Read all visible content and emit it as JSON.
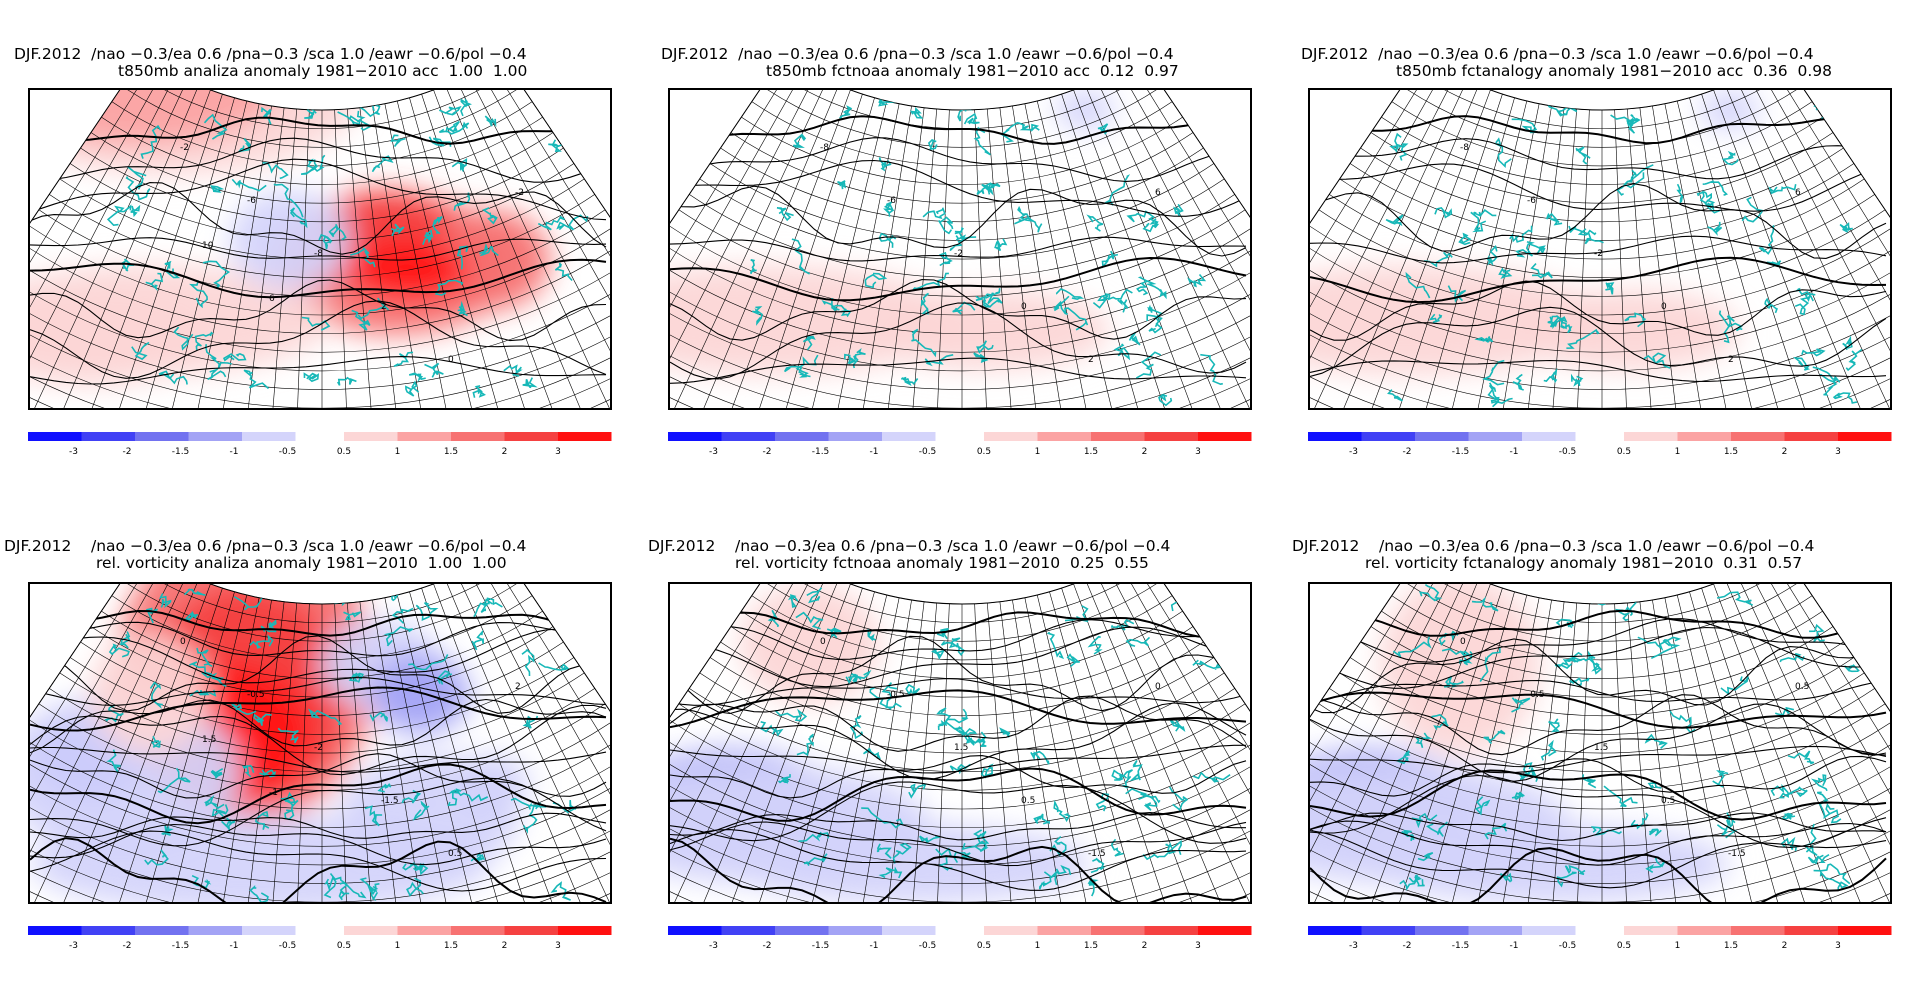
{
  "colors": {
    "neg": [
      "#1010ff",
      "#4141f5",
      "#7272f0",
      "#a3a3f5",
      "#d4d4fb"
    ],
    "pos": [
      "#fcd6d6",
      "#fba3a3",
      "#f77272",
      "#f54141",
      "#ff1010"
    ],
    "coast": "#17b8b8",
    "contour": "#000000"
  },
  "colorbar": {
    "neg_labels": [
      "-3",
      "-2",
      "-1.5",
      "-1",
      "-0.5"
    ],
    "pos_labels": [
      "0.5",
      "1",
      "1.5",
      "2",
      "3"
    ]
  },
  "panels": [
    {
      "title1": "DJF.2012  /nao −0.3/ea 0.6 /pna−0.3 /sca 1.0 /eawr −0.6/pol −0.4",
      "title2": "t850mb analiza anomaly 1981−2010 acc  1.00  1.00",
      "contour_labels": [
        "-2",
        "-6",
        "-8",
        "2",
        "0",
        "-2",
        "10",
        "6"
      ]
    },
    {
      "title1": "DJF.2012  /nao −0.3/ea 0.6 /pna−0.3 /sca 1.0 /eawr −0.6/pol −0.4",
      "title2": "t850mb fctnoaa anomaly 1981−2010 acc  0.12  0.97",
      "contour_labels": [
        "-8",
        "-6",
        "-2",
        "0",
        "2",
        "6"
      ]
    },
    {
      "title1": "DJF.2012  /nao −0.3/ea 0.6 /pna−0.3 /sca 1.0 /eawr −0.6/pol −0.4",
      "title2": "t850mb fctanalogy anomaly 1981−2010 acc  0.36  0.98",
      "contour_labels": [
        "-8",
        "-6",
        "-2",
        "0",
        "2",
        "6"
      ]
    },
    {
      "title1": "DJF.2012    /nao −0.3/ea 0.6 /pna−0.3 /sca 1.0 /eawr −0.6/pol −0.4",
      "title2": "rel. vorticity analiza anomaly 1981−2010  1.00  1.00",
      "contour_labels": [
        "0",
        "-0.5",
        "-2",
        "-1.5",
        "0.5",
        "2",
        "1.5",
        "-1"
      ]
    },
    {
      "title1": "DJF.2012    /nao −0.3/ea 0.6 /pna−0.3 /sca 1.0 /eawr −0.6/pol −0.4",
      "title2": "rel. vorticity fctnoaa anomaly 1981−2010  0.25  0.55",
      "contour_labels": [
        "0",
        "-0.5",
        "1.5",
        "0.5",
        "-1.5",
        "0"
      ]
    },
    {
      "title1": "DJF.2012    /nao −0.3/ea 0.6 /pna−0.3 /sca 1.0 /eawr −0.6/pol −0.4",
      "title2": "rel. vorticity fctanalogy anomaly 1981−2010  0.31  0.57",
      "contour_labels": [
        "0",
        "-0.5",
        "1.5",
        "0.5",
        "-1.5",
        "0.5"
      ]
    }
  ]
}
